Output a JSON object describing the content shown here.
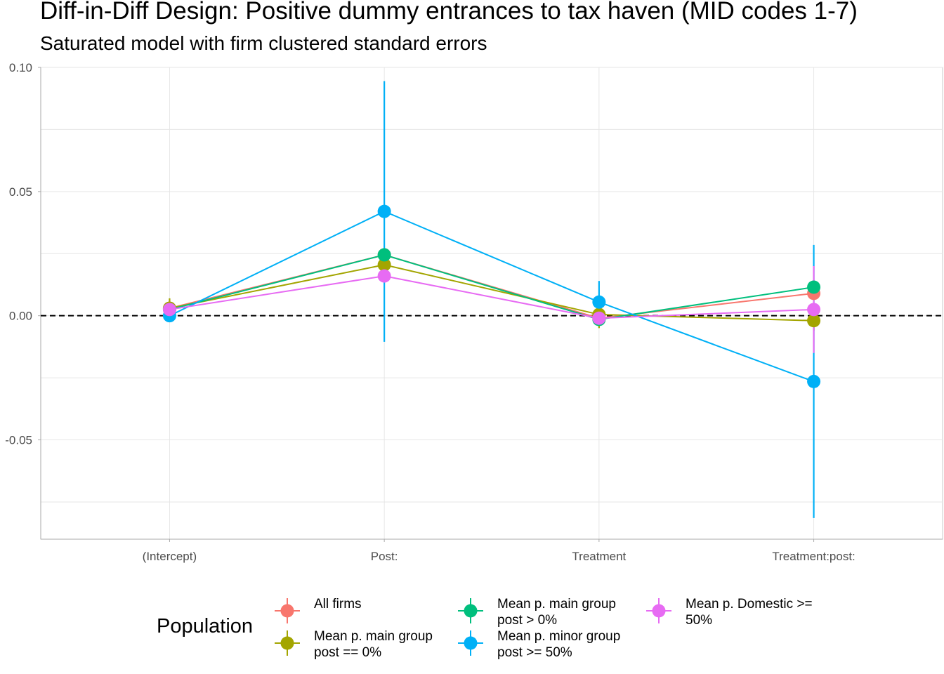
{
  "title": "Diff-in-Diff Design: Positive dummy entrances to tax haven (MID codes 1-7)",
  "subtitle": "Saturated model with firm clustered standard errors",
  "chart_data": {
    "type": "line",
    "categories": [
      "(Intercept)",
      "Post:",
      "Treatment",
      "Treatment:post:"
    ],
    "ylim": [
      -0.09,
      0.1
    ],
    "yticks": [
      0.1,
      0.05,
      0.0,
      -0.05
    ],
    "ytick_labels": [
      "0.10",
      "0.05",
      "0.00",
      "-0.05"
    ],
    "reference_line": 0.0,
    "grid": true,
    "legend_position": "bottom",
    "legend_title": "Population",
    "series": [
      {
        "name": "All firms",
        "color": "#F8766D",
        "values": [
          0.003,
          0.0245,
          -0.001,
          0.009
        ],
        "lower": [
          0.0015,
          0.0225,
          -0.003,
          0.007
        ],
        "upper": [
          0.0045,
          0.0265,
          0.001,
          0.011
        ]
      },
      {
        "name": "Mean p. main group post == 0%",
        "color": "#A3A500",
        "values": [
          0.003,
          0.0205,
          0.0005,
          -0.002
        ],
        "lower": [
          -0.001,
          0.018,
          -0.005,
          -0.006
        ],
        "upper": [
          0.007,
          0.023,
          0.006,
          0.002
        ]
      },
      {
        "name": "Mean p. main group post > 0%",
        "color": "#00BF7D",
        "values": [
          0.0025,
          0.0245,
          -0.0015,
          0.0115
        ],
        "lower": [
          0.001,
          0.022,
          -0.004,
          0.009
        ],
        "upper": [
          0.004,
          0.027,
          0.001,
          0.014
        ]
      },
      {
        "name": "Mean p. minor group post >= 50%",
        "color": "#00B0F6",
        "values": [
          0.0,
          0.042,
          0.0055,
          -0.0265
        ],
        "lower": [
          -0.001,
          -0.0105,
          -0.003,
          -0.0815
        ],
        "upper": [
          0.001,
          0.0945,
          0.014,
          0.0285
        ]
      },
      {
        "name": "Mean p. Domestic >= 50%",
        "color": "#E76BF3",
        "values": [
          0.0025,
          0.016,
          -0.001,
          0.0025
        ],
        "lower": [
          0.001,
          0.0135,
          -0.003,
          -0.015
        ],
        "upper": [
          0.004,
          0.0185,
          0.001,
          0.02
        ]
      }
    ]
  },
  "legend": {
    "title": "Population",
    "items": [
      {
        "label": "All firms",
        "color": "#F8766D"
      },
      {
        "label": "Mean p. main group\npost == 0%",
        "color": "#A3A500"
      },
      {
        "label": "Mean p. main group\npost > 0%",
        "color": "#00BF7D"
      },
      {
        "label": "Mean p. minor group\npost >= 50%",
        "color": "#00B0F6"
      },
      {
        "label": "Mean p. Domestic >=\n50%",
        "color": "#E76BF3"
      }
    ]
  }
}
